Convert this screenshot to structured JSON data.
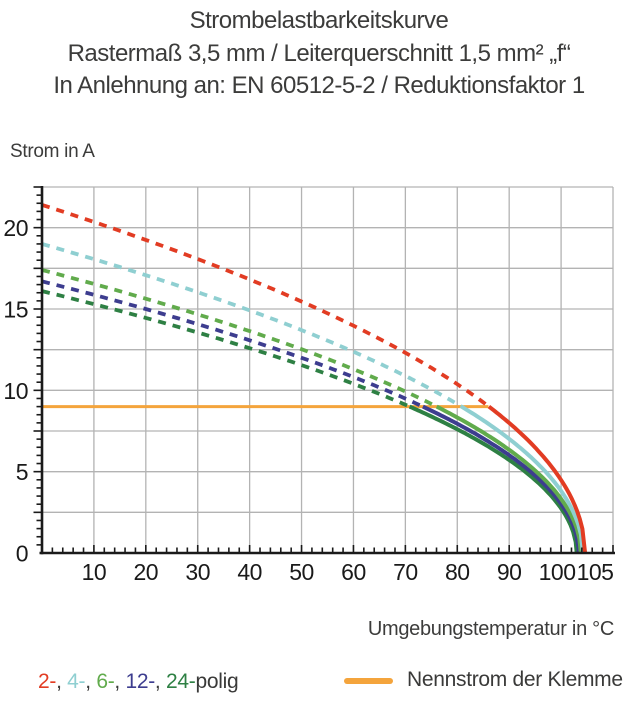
{
  "title": {
    "line1": "Strombelastbarkeitskurve",
    "line2": "Rastermaß 3,5 mm / Leiterquerschnitt 1,5 mm² „f“",
    "line3": "In Anlehnung an: EN 60512-5-2 / Reduktionsfaktor 1"
  },
  "axis_labels": {
    "y": "Strom in A",
    "x": "Umgebungstemperatur in °C"
  },
  "chart_data": {
    "type": "line",
    "title": "Strombelastbarkeitskurve",
    "xlabel": "Umgebungstemperatur in °C",
    "ylabel": "Strom in A",
    "xlim": [
      0,
      110
    ],
    "ylim": [
      0,
      22.5
    ],
    "x_tick_labels": [
      10,
      20,
      30,
      40,
      50,
      60,
      70,
      80,
      90,
      100,
      105
    ],
    "y_tick_labels": [
      0,
      5,
      10,
      15,
      20
    ],
    "x_grid_step": 10,
    "y_grid_step": 2.5,
    "x_minor_tick_step": 2,
    "y_minor_tick_step": 0.5,
    "grid": true,
    "grid_color": "#b3b3b3",
    "axis_color": "#1a1a1a",
    "curve_model": "I(T) = current_at_0c_a * sqrt(1 - T / temp_at_zero_current_c); drawn dashed above the 9 A nominal line, solid below it",
    "nominal_line": {
      "label": "Nennstrom der Klemme",
      "current_a": 9,
      "temp_from_c": 0,
      "temp_to_c": 86,
      "color": "#f4a43c"
    },
    "series": [
      {
        "name": "2-polig",
        "color": "#e23c23",
        "current_at_0c_a": 21.4,
        "temp_at_nominal_c": 86.1,
        "temp_at_zero_current_c": 104.6,
        "sample_temps_c": [
          0,
          20,
          40,
          60,
          80,
          100
        ],
        "sample_currents_a": [
          21.4,
          19.2,
          16.8,
          14.0,
          10.4,
          4.5
        ]
      },
      {
        "name": "4-polig",
        "color": "#8fcfd1",
        "current_at_0c_a": 19.0,
        "temp_at_nominal_c": 80.8,
        "temp_at_zero_current_c": 104.2,
        "sample_temps_c": [
          0,
          20,
          40,
          60,
          80,
          100
        ],
        "sample_currents_a": [
          19.0,
          17.1,
          14.9,
          12.4,
          9.2,
          3.8
        ]
      },
      {
        "name": "6-polig",
        "color": "#61ab4c",
        "current_at_0c_a": 17.4,
        "temp_at_nominal_c": 76.0,
        "temp_at_zero_current_c": 103.8,
        "sample_temps_c": [
          0,
          20,
          40,
          60,
          80,
          100
        ],
        "sample_currents_a": [
          17.4,
          15.6,
          13.6,
          11.3,
          8.3,
          3.3
        ]
      },
      {
        "name": "12-polig",
        "color": "#3d3d8f",
        "current_at_0c_a": 16.7,
        "temp_at_nominal_c": 73.4,
        "temp_at_zero_current_c": 103.4,
        "sample_temps_c": [
          0,
          20,
          40,
          60,
          80,
          100
        ],
        "sample_currents_a": [
          16.7,
          15.0,
          13.1,
          10.8,
          7.9,
          3.0
        ]
      },
      {
        "name": "24-polig",
        "color": "#2e8044",
        "current_at_0c_a": 16.1,
        "temp_at_nominal_c": 70.8,
        "temp_at_zero_current_c": 103.0,
        "sample_temps_c": [
          0,
          20,
          40,
          60,
          80,
          100
        ],
        "sample_currents_a": [
          16.1,
          14.5,
          12.6,
          10.4,
          7.6,
          2.7
        ]
      }
    ],
    "legend_position": "bottom"
  },
  "legend": {
    "poles": {
      "segments": [
        {
          "text": "2-",
          "color": "#e23c23"
        },
        {
          "text": ", ",
          "color": "#3a3a39"
        },
        {
          "text": "4-",
          "color": "#8fcfd1"
        },
        {
          "text": ", ",
          "color": "#3a3a39"
        },
        {
          "text": "6-",
          "color": "#61ab4c"
        },
        {
          "text": ", ",
          "color": "#3a3a39"
        },
        {
          "text": "12-",
          "color": "#3d3d8f"
        },
        {
          "text": ", ",
          "color": "#3a3a39"
        },
        {
          "text": "24-",
          "color": "#2e8044"
        },
        {
          "text": "polig",
          "color": "#3a3a39"
        }
      ]
    },
    "nominal": {
      "label": "Nennstrom der Klemme",
      "swatch_color": "#f4a43c"
    }
  }
}
